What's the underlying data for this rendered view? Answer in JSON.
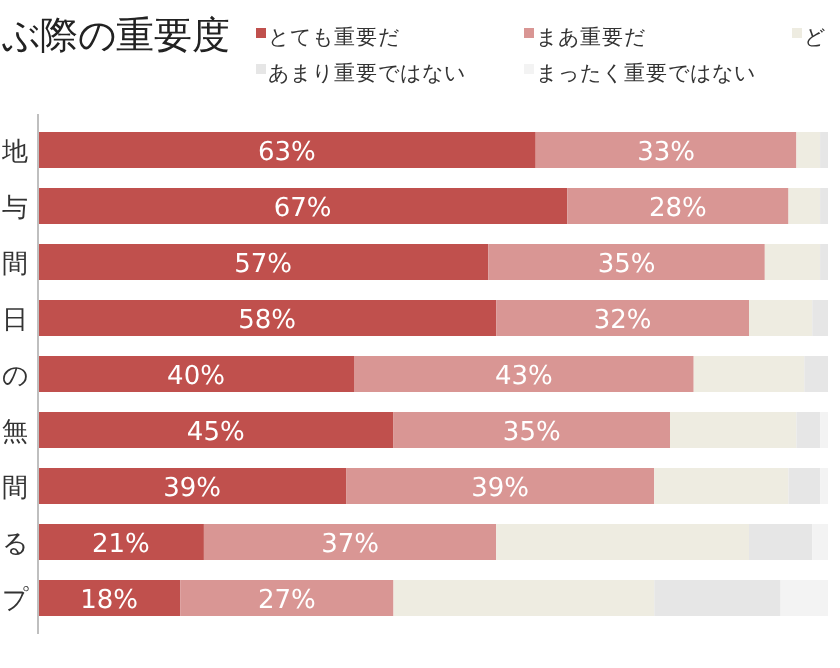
{
  "chart_data": {
    "type": "bar",
    "orientation": "horizontal",
    "stacked": true,
    "title": "ぶ際の重要度",
    "categories": [
      "地",
      "与",
      "間",
      "日",
      "の",
      "無",
      "間",
      "る",
      "プ"
    ],
    "xlim": [
      0,
      100
    ],
    "tick_labels": "y",
    "legend": "top",
    "series": [
      {
        "name": "とても重要だ",
        "color": "#c0504d",
        "values": [
          63,
          67,
          57,
          58,
          40,
          45,
          39,
          21,
          18
        ],
        "value_labels": [
          "63%",
          "67%",
          "57%",
          "58%",
          "40%",
          "45%",
          "39%",
          "21%",
          "18%"
        ]
      },
      {
        "name": "まあ重要だ",
        "color": "#d99694",
        "values": [
          33,
          28,
          35,
          32,
          43,
          35,
          39,
          37,
          27
        ],
        "value_labels": [
          "33%",
          "28%",
          "35%",
          "32%",
          "43%",
          "35%",
          "39%",
          "37%",
          "27%"
        ]
      },
      {
        "name": "ど",
        "color": "#eeece1",
        "values": [
          3,
          4,
          7,
          8,
          14,
          16,
          17,
          32,
          33
        ]
      },
      {
        "name": "あまり重要ではない",
        "color": "#e6e6e6",
        "values": [
          1,
          1,
          1,
          2,
          3,
          3,
          4,
          8,
          16
        ]
      },
      {
        "name": "まったく重要ではない",
        "color": "#f3f3f3",
        "values": [
          0,
          0,
          0,
          0,
          0,
          1,
          1,
          2,
          6
        ]
      }
    ]
  }
}
